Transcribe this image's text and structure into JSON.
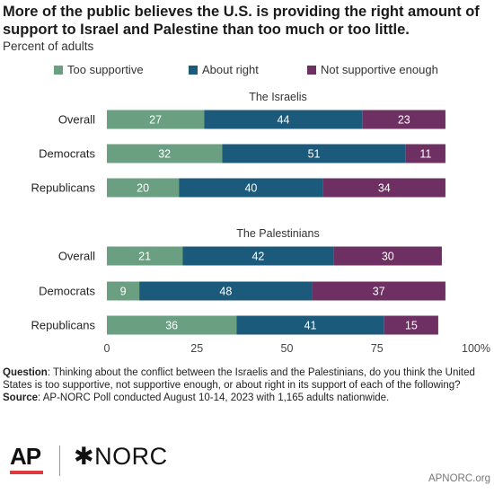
{
  "title": "More of the public believes the U.S. is providing the right amount of support to Israel and Palestine than too much or too little.",
  "subtitle": "Percent of adults",
  "colors": {
    "too_supportive": "#6a9f81",
    "about_right": "#1c5a7c",
    "not_supportive_enough": "#6e2f62"
  },
  "chart_data": {
    "type": "bar",
    "orientation": "horizontal",
    "stacked": true,
    "xlim": [
      0,
      100
    ],
    "x_ticks": [
      "0",
      "25",
      "50",
      "75",
      "100%"
    ],
    "legend_position": "top",
    "grid": false,
    "series": [
      {
        "name": "Too supportive"
      },
      {
        "name": "About right"
      },
      {
        "name": "Not supportive enough"
      }
    ],
    "groups": [
      {
        "label": "The Israelis",
        "rows": [
          {
            "category": "Overall",
            "values": [
              27,
              44,
              23
            ]
          },
          {
            "category": "Democrats",
            "values": [
              32,
              51,
              11
            ]
          },
          {
            "category": "Republicans",
            "values": [
              20,
              40,
              34
            ]
          }
        ]
      },
      {
        "label": "The Palestinians",
        "rows": [
          {
            "category": "Overall",
            "values": [
              21,
              42,
              30
            ]
          },
          {
            "category": "Democrats",
            "values": [
              9,
              48,
              37
            ]
          },
          {
            "category": "Republicans",
            "values": [
              36,
              41,
              15
            ]
          }
        ]
      }
    ]
  },
  "footnote": {
    "question_label": "Question",
    "question_text": ": Thinking about the conflict between the Israelis and the Palestinians, do you think the United States is too supportive, not supportive enough, or about right in its support of each of the following?",
    "source_label": "Source",
    "source_text": ": AP-NORC Poll conducted August 10-14, 2023 with 1,165 adults nationwide."
  },
  "logos": {
    "ap": "AP",
    "norc": "✱NORC"
  },
  "site": "APNORC.org"
}
